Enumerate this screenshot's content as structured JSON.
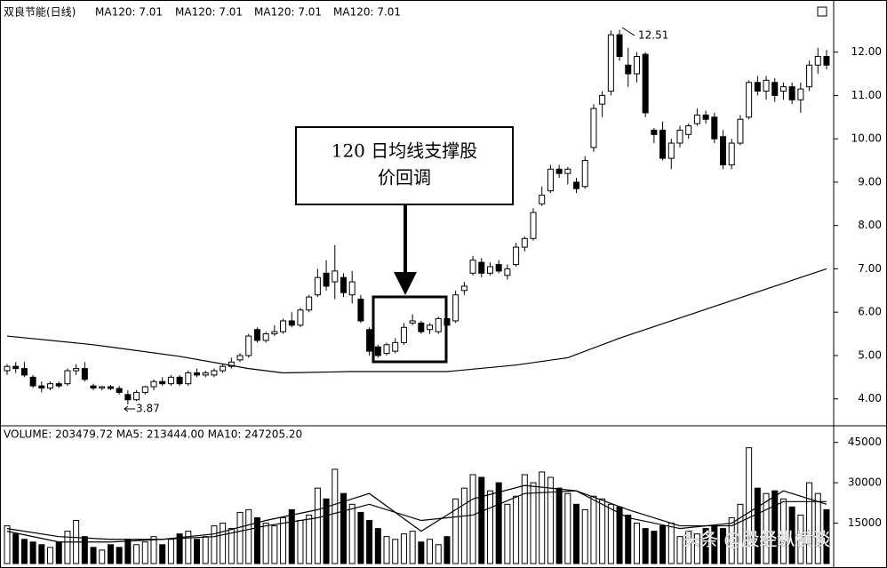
{
  "chart_data": {
    "type": "candlestick",
    "title": "双良节能(日线)",
    "ma_labels": [
      "MA120: 7.01",
      "MA120: 7.01",
      "MA120: 7.01",
      "MA120: 7.01"
    ],
    "candles": {
      "open": [
        4.65,
        4.75,
        4.7,
        4.5,
        4.3,
        4.25,
        4.35,
        4.35,
        4.65,
        4.7,
        4.3,
        4.25,
        4.28,
        4.24,
        4.1,
        3.98,
        4.15,
        4.28,
        4.4,
        4.35,
        4.5,
        4.35,
        4.6,
        4.55,
        4.55,
        4.65,
        4.75,
        4.9,
        5.0,
        5.6,
        5.35,
        5.5,
        5.55,
        5.8,
        5.7,
        6.05,
        6.4,
        6.9,
        6.7,
        6.8,
        6.4,
        6.3,
        5.6,
        5.2,
        5.05,
        5.1,
        5.3,
        5.75,
        5.75,
        5.6,
        5.55,
        5.85,
        5.8,
        6.5,
        6.9,
        7.15,
        6.9,
        7.1,
        6.85,
        7.1,
        7.5,
        7.7,
        8.5,
        8.8,
        9.3,
        9.2,
        9.0,
        8.9,
        9.8,
        10.8,
        11.1,
        12.4,
        11.7,
        11.5,
        11.95,
        10.2,
        10.2,
        9.55,
        9.9,
        10.1,
        10.35,
        10.55,
        10.5,
        10.05,
        9.4,
        9.9,
        10.5,
        11.3,
        11.1,
        11.3,
        11.1,
        11.2,
        10.9,
        11.2,
        11.7,
        11.9
      ],
      "high": [
        4.8,
        4.85,
        4.85,
        4.55,
        4.4,
        4.4,
        4.4,
        4.7,
        4.8,
        4.85,
        4.35,
        4.3,
        4.32,
        4.3,
        4.2,
        4.2,
        4.3,
        4.45,
        4.5,
        4.55,
        4.55,
        4.65,
        4.7,
        4.65,
        4.7,
        4.8,
        4.95,
        5.05,
        5.5,
        5.65,
        5.55,
        5.7,
        5.85,
        6.0,
        6.1,
        6.4,
        7.0,
        7.2,
        7.55,
        6.9,
        6.95,
        6.4,
        5.65,
        5.25,
        5.3,
        5.4,
        5.75,
        5.95,
        5.8,
        5.75,
        5.9,
        5.95,
        6.5,
        6.7,
        7.3,
        7.25,
        7.15,
        7.2,
        7.1,
        7.6,
        7.75,
        8.4,
        8.9,
        9.4,
        9.4,
        9.35,
        9.1,
        9.6,
        10.8,
        11.1,
        12.5,
        12.51,
        12.1,
        12.0,
        12.0,
        10.25,
        10.4,
        10.0,
        10.3,
        10.35,
        10.7,
        10.65,
        10.6,
        10.2,
        10.0,
        10.55,
        11.35,
        11.45,
        11.45,
        11.4,
        11.3,
        11.3,
        11.3,
        11.8,
        12.1,
        12.05
      ],
      "low": [
        4.55,
        4.6,
        4.5,
        4.25,
        4.15,
        4.2,
        4.25,
        4.3,
        4.55,
        4.4,
        4.2,
        4.2,
        4.2,
        4.1,
        3.87,
        3.95,
        4.1,
        4.2,
        4.3,
        4.3,
        4.3,
        4.3,
        4.5,
        4.5,
        4.5,
        4.6,
        4.7,
        4.85,
        4.95,
        5.3,
        5.3,
        5.45,
        5.5,
        5.65,
        5.65,
        6.0,
        6.35,
        6.5,
        6.3,
        6.35,
        6.2,
        5.75,
        5.0,
        4.95,
        5.0,
        5.05,
        5.25,
        5.7,
        5.5,
        5.5,
        5.5,
        5.6,
        5.75,
        6.4,
        6.85,
        6.8,
        6.85,
        6.9,
        6.75,
        7.05,
        7.4,
        7.65,
        8.45,
        8.75,
        9.1,
        8.95,
        8.75,
        8.85,
        9.7,
        10.5,
        11.0,
        11.8,
        11.2,
        11.3,
        10.5,
        9.9,
        9.5,
        9.3,
        9.8,
        10.0,
        10.3,
        10.35,
        9.9,
        9.3,
        9.3,
        9.85,
        10.45,
        11.0,
        10.9,
        10.85,
        10.9,
        10.8,
        10.6,
        11.1,
        11.5,
        11.6
      ],
      "close": [
        4.75,
        4.7,
        4.55,
        4.3,
        4.25,
        4.35,
        4.3,
        4.65,
        4.7,
        4.45,
        4.25,
        4.28,
        4.24,
        4.15,
        3.98,
        4.15,
        4.28,
        4.4,
        4.35,
        4.5,
        4.35,
        4.6,
        4.55,
        4.6,
        4.65,
        4.75,
        4.85,
        5.0,
        5.45,
        5.35,
        5.5,
        5.55,
        5.8,
        5.7,
        6.05,
        6.35,
        6.8,
        6.6,
        6.95,
        6.45,
        6.7,
        5.8,
        5.1,
        5.0,
        5.25,
        5.3,
        5.65,
        5.8,
        5.55,
        5.7,
        5.85,
        5.7,
        6.4,
        6.6,
        7.2,
        6.9,
        7.05,
        6.95,
        7.0,
        7.5,
        7.7,
        8.3,
        8.7,
        9.3,
        9.2,
        9.3,
        8.85,
        9.5,
        10.7,
        11.0,
        12.4,
        11.9,
        11.5,
        11.9,
        10.6,
        10.1,
        9.55,
        9.9,
        10.2,
        10.3,
        10.55,
        10.45,
        10.0,
        9.4,
        9.9,
        10.45,
        11.3,
        11.1,
        11.35,
        11.0,
        11.2,
        10.9,
        11.15,
        11.7,
        11.9,
        11.7
      ]
    },
    "ma_line": {
      "color": "#000000",
      "x": [
        0,
        10,
        20,
        28,
        32,
        40,
        51,
        59,
        65,
        71,
        77,
        83,
        89,
        95
      ],
      "values": [
        5.45,
        5.25,
        4.98,
        4.7,
        4.6,
        4.63,
        4.63,
        4.78,
        4.95,
        5.4,
        5.8,
        6.2,
        6.6,
        7.0
      ]
    },
    "ylim": [
      3.4,
      13.1
    ],
    "yticks": [
      {
        "value": 4,
        "label": "4.00"
      },
      {
        "value": 5,
        "label": "5.00"
      },
      {
        "value": 6,
        "label": "6.00"
      },
      {
        "value": 7,
        "label": "7.00"
      },
      {
        "value": 8,
        "label": "8.00"
      },
      {
        "value": 9,
        "label": "9.00"
      },
      {
        "value": 10,
        "label": "10.00"
      },
      {
        "value": 11,
        "label": "11.00"
      },
      {
        "value": 12,
        "label": "12.00"
      }
    ],
    "high_label": "12.51",
    "low_label": "3.87",
    "note": [
      "120 日均线支撑股",
      "价回调"
    ],
    "volume": {
      "header": "VOLUME: 203479.72  MA5: 213444.00  MA10: 247205.20",
      "values": [
        14000,
        11000,
        9000,
        8000,
        7000,
        6000,
        8000,
        12000,
        16000,
        10000,
        6000,
        5000,
        7000,
        6000,
        9000,
        7000,
        8000,
        10000,
        7000,
        9000,
        11000,
        12000,
        9000,
        10000,
        14000,
        15000,
        13000,
        19000,
        20000,
        17000,
        15000,
        14000,
        17000,
        20000,
        16000,
        18000,
        28000,
        24000,
        35000,
        26000,
        22000,
        19000,
        16000,
        13000,
        10000,
        9000,
        11000,
        12000,
        8000,
        9000,
        7000,
        10000,
        24000,
        28000,
        33000,
        32000,
        27000,
        30000,
        22000,
        25000,
        33000,
        30000,
        34000,
        32000,
        28000,
        26000,
        22000,
        20000,
        25000,
        24000,
        22000,
        21000,
        18000,
        15000,
        13000,
        12000,
        14000,
        15000,
        10000,
        12000,
        11000,
        13000,
        14000,
        13000,
        17000,
        22000,
        43000,
        28000,
        26000,
        27000,
        24000,
        21000,
        18000,
        30000,
        26000,
        20000
      ],
      "ylim": [
        0,
        49500
      ],
      "yticks": [
        15000,
        30000,
        45000
      ],
      "ma": [
        {
          "color": "#000000",
          "x": [
            0,
            6,
            12,
            18,
            24,
            30,
            36,
            42,
            48,
            54,
            60,
            66,
            72,
            78,
            84,
            90,
            95
          ],
          "values": [
            12000,
            8000,
            8000,
            9000,
            11000,
            16000,
            20000,
            26000,
            12000,
            24000,
            29000,
            27000,
            17000,
            13000,
            15000,
            27000,
            22000
          ]
        },
        {
          "color": "#000000",
          "x": [
            0,
            6,
            12,
            18,
            24,
            30,
            36,
            42,
            48,
            54,
            60,
            66,
            72,
            78,
            84,
            90,
            95
          ],
          "values": [
            13000,
            10000,
            9000,
            9000,
            10000,
            14000,
            17000,
            22000,
            16000,
            18000,
            26000,
            27000,
            20000,
            14000,
            14000,
            23000,
            23000
          ]
        }
      ]
    },
    "watermark": "头条 @股经纵横谈"
  }
}
